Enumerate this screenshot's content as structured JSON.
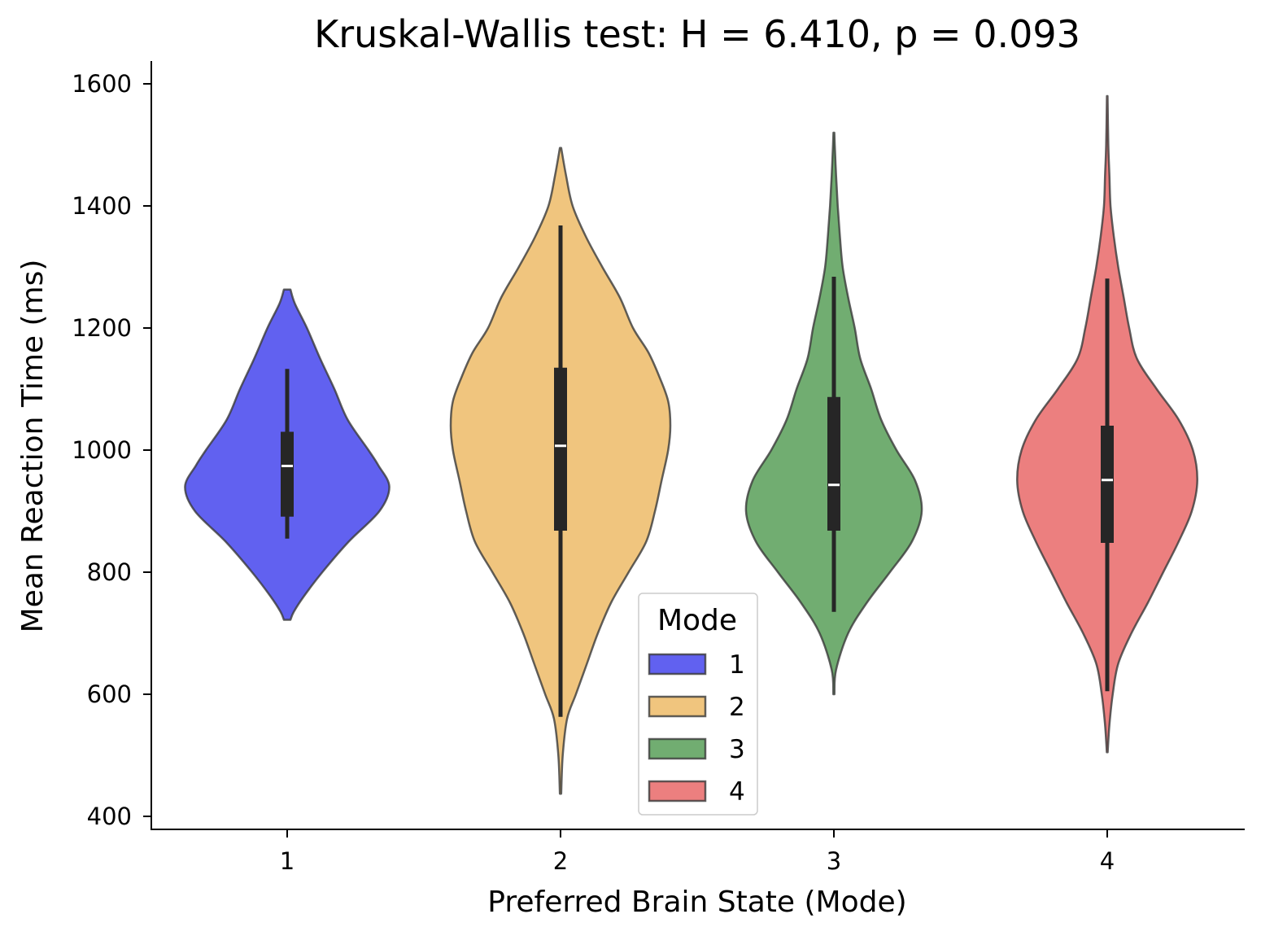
{
  "chart_data": {
    "type": "violin",
    "title": "Kruskal-Wallis test: H = 6.410, p = 0.093",
    "xlabel": "Preferred Brain State (Mode)",
    "ylabel": "Mean Reaction Time (ms)",
    "categories": [
      "1",
      "2",
      "3",
      "4"
    ],
    "ylim": [
      380,
      1640
    ],
    "yticks": [
      "400",
      "600",
      "800",
      "1000",
      "1200",
      "1400",
      "1600"
    ],
    "grid": false,
    "legend": {
      "title": "Mode",
      "placement": "bottom-center",
      "entries": [
        "1",
        "2",
        "3",
        "4"
      ]
    },
    "series": [
      {
        "category": "1",
        "color": "#0000e6",
        "min": 722,
        "max": 1263,
        "q1": 891,
        "median": 974,
        "q3": 1030,
        "whisker_low": 855,
        "whisker_high": 1133,
        "density": [
          [
            722,
            0.03
          ],
          [
            735,
            0.06
          ],
          [
            760,
            0.15
          ],
          [
            800,
            0.32
          ],
          [
            850,
            0.56
          ],
          [
            900,
            0.84
          ],
          [
            940,
            0.93
          ],
          [
            975,
            0.83
          ],
          [
            1000,
            0.74
          ],
          [
            1050,
            0.55
          ],
          [
            1100,
            0.43
          ],
          [
            1150,
            0.3
          ],
          [
            1200,
            0.18
          ],
          [
            1240,
            0.07
          ],
          [
            1263,
            0.03
          ]
        ]
      },
      {
        "category": "2",
        "color": "#e6a12e",
        "min": 437,
        "max": 1495,
        "q1": 868,
        "median": 1007,
        "q3": 1135,
        "whisker_low": 563,
        "whisker_high": 1368,
        "density": [
          [
            437,
            0.006
          ],
          [
            500,
            0.02
          ],
          [
            560,
            0.06
          ],
          [
            600,
            0.14
          ],
          [
            650,
            0.24
          ],
          [
            700,
            0.34
          ],
          [
            750,
            0.46
          ],
          [
            800,
            0.62
          ],
          [
            850,
            0.78
          ],
          [
            900,
            0.86
          ],
          [
            950,
            0.92
          ],
          [
            1000,
            0.98
          ],
          [
            1040,
            1.0
          ],
          [
            1080,
            0.98
          ],
          [
            1120,
            0.9
          ],
          [
            1160,
            0.8
          ],
          [
            1200,
            0.66
          ],
          [
            1250,
            0.54
          ],
          [
            1300,
            0.38
          ],
          [
            1350,
            0.23
          ],
          [
            1400,
            0.11
          ],
          [
            1450,
            0.05
          ],
          [
            1495,
            0.006
          ]
        ]
      },
      {
        "category": "3",
        "color": "#1a7a1a",
        "min": 600,
        "max": 1520,
        "q1": 868,
        "median": 943,
        "q3": 1087,
        "whisker_low": 735,
        "whisker_high": 1284,
        "density": [
          [
            600,
            0.005
          ],
          [
            640,
            0.02
          ],
          [
            700,
            0.13
          ],
          [
            750,
            0.3
          ],
          [
            800,
            0.51
          ],
          [
            850,
            0.71
          ],
          [
            900,
            0.8
          ],
          [
            950,
            0.74
          ],
          [
            1000,
            0.57
          ],
          [
            1050,
            0.43
          ],
          [
            1100,
            0.34
          ],
          [
            1150,
            0.24
          ],
          [
            1200,
            0.19
          ],
          [
            1250,
            0.13
          ],
          [
            1300,
            0.08
          ],
          [
            1350,
            0.055
          ],
          [
            1400,
            0.035
          ],
          [
            1450,
            0.02
          ],
          [
            1500,
            0.008
          ],
          [
            1520,
            0.004
          ]
        ]
      },
      {
        "category": "4",
        "color": "#e03030",
        "min": 505,
        "max": 1580,
        "q1": 848,
        "median": 951,
        "q3": 1040,
        "whisker_low": 605,
        "whisker_high": 1281,
        "density": [
          [
            505,
            0.004
          ],
          [
            550,
            0.02
          ],
          [
            600,
            0.05
          ],
          [
            650,
            0.1
          ],
          [
            700,
            0.22
          ],
          [
            750,
            0.37
          ],
          [
            800,
            0.51
          ],
          [
            850,
            0.65
          ],
          [
            900,
            0.77
          ],
          [
            950,
            0.82
          ],
          [
            1000,
            0.78
          ],
          [
            1050,
            0.65
          ],
          [
            1100,
            0.45
          ],
          [
            1150,
            0.27
          ],
          [
            1200,
            0.2
          ],
          [
            1250,
            0.15
          ],
          [
            1300,
            0.1
          ],
          [
            1350,
            0.06
          ],
          [
            1400,
            0.03
          ],
          [
            1450,
            0.02
          ],
          [
            1500,
            0.01
          ],
          [
            1580,
            0.003
          ]
        ]
      }
    ]
  }
}
